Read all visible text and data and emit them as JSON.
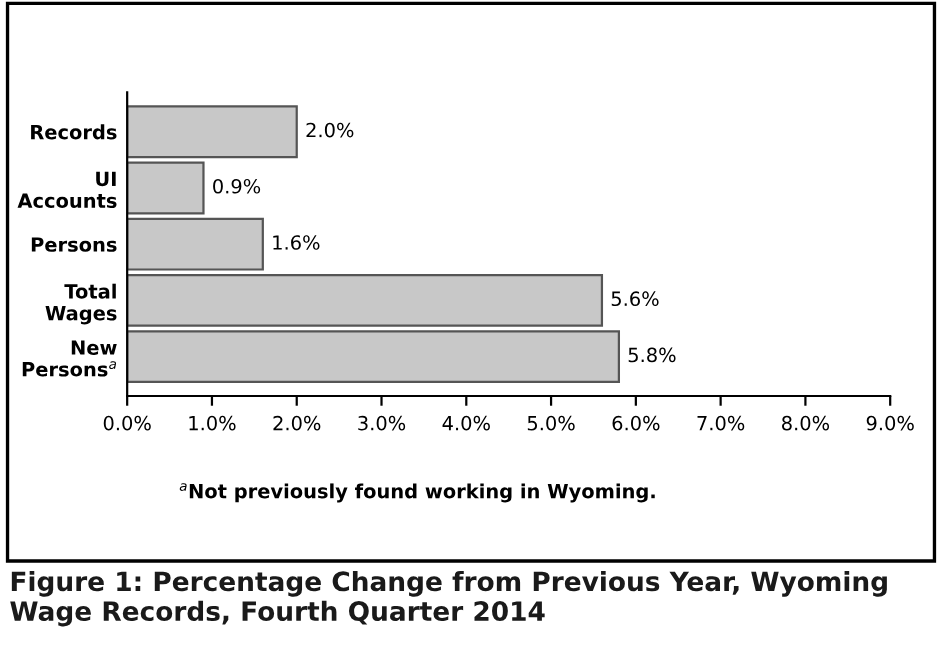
{
  "chart_data": {
    "type": "bar",
    "orientation": "horizontal",
    "title": "Figure 1: Percentage Change from Previous Year, Wyoming Wage Records, Fourth Quarter 2014",
    "categories": [
      "Records",
      "UI\nAccounts",
      "Persons",
      "Total\nWages",
      "New\nPersons$^{a}$"
    ],
    "values": [
      2.0,
      0.9,
      1.6,
      5.6,
      5.8
    ],
    "value_labels": [
      "2.0%",
      "0.9%",
      "1.6%",
      "5.6%",
      "5.8%"
    ],
    "color": "#c8c8c8",
    "xlim": [
      0,
      9
    ],
    "xticks": [
      {
        "value": 0,
        "label": "0.0%"
      },
      {
        "value": 1,
        "label": "1.0%"
      },
      {
        "value": 2,
        "label": "2.0%"
      },
      {
        "value": 3,
        "label": "3.0%"
      },
      {
        "value": 4,
        "label": "4.0%"
      },
      {
        "value": 5,
        "label": "5.0%"
      },
      {
        "value": 6,
        "label": "6.0%"
      },
      {
        "value": 7,
        "label": "7.0%"
      },
      {
        "value": 8,
        "label": "8.0%"
      },
      {
        "value": 9,
        "label": "9.0%"
      }
    ],
    "grid": false,
    "annotations": [
      "$^{a}$Not previously found working in Wyoming."
    ]
  }
}
